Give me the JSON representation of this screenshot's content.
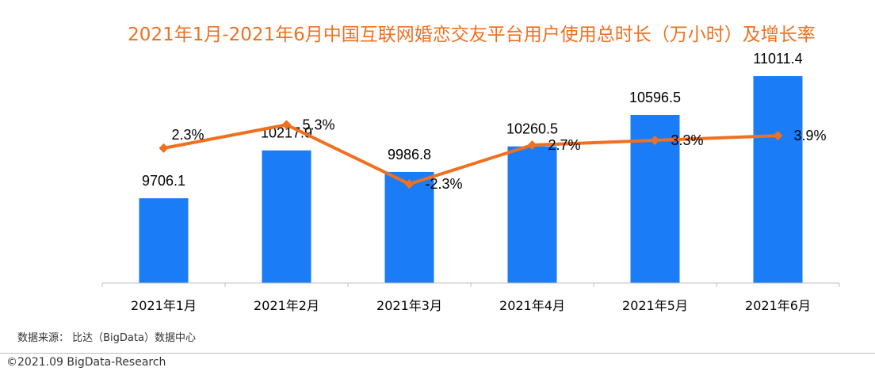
{
  "title": "2021年1月-2021年6月中国互联网婚恋交友平台用户使用总时长（万小时）及增长率",
  "source": "数据来源： 比达（BigData）数据中心",
  "copyright": "©2021.09 BigData-Research",
  "colors": {
    "bar": "#1a7cf7",
    "line": "#f07020",
    "title": "#f07020"
  },
  "chart_data": {
    "type": "bar",
    "categories": [
      "2021年1月",
      "2021年2月",
      "2021年3月",
      "2021年4月",
      "2021年5月",
      "2021年6月"
    ],
    "series": [
      {
        "type": "bar",
        "values": [
          9706.1,
          10217.9,
          9986.8,
          10260.5,
          10596.5,
          11011.4
        ],
        "labels": [
          "9706.1",
          "10217.9",
          "9986.8",
          "10260.5",
          "10596.5",
          "11011.4"
        ]
      },
      {
        "type": "line",
        "values": [
          2.3,
          5.3,
          -2.3,
          2.7,
          3.3,
          3.9
        ],
        "labels": [
          "2.3%",
          "5.3%",
          "-2.3%",
          "2.7%",
          "3.3%",
          "3.9%"
        ]
      }
    ],
    "ylim": [
      8800,
      11300
    ],
    "y2lim": [
      -15,
      15
    ],
    "grid": false,
    "legend": "none"
  }
}
